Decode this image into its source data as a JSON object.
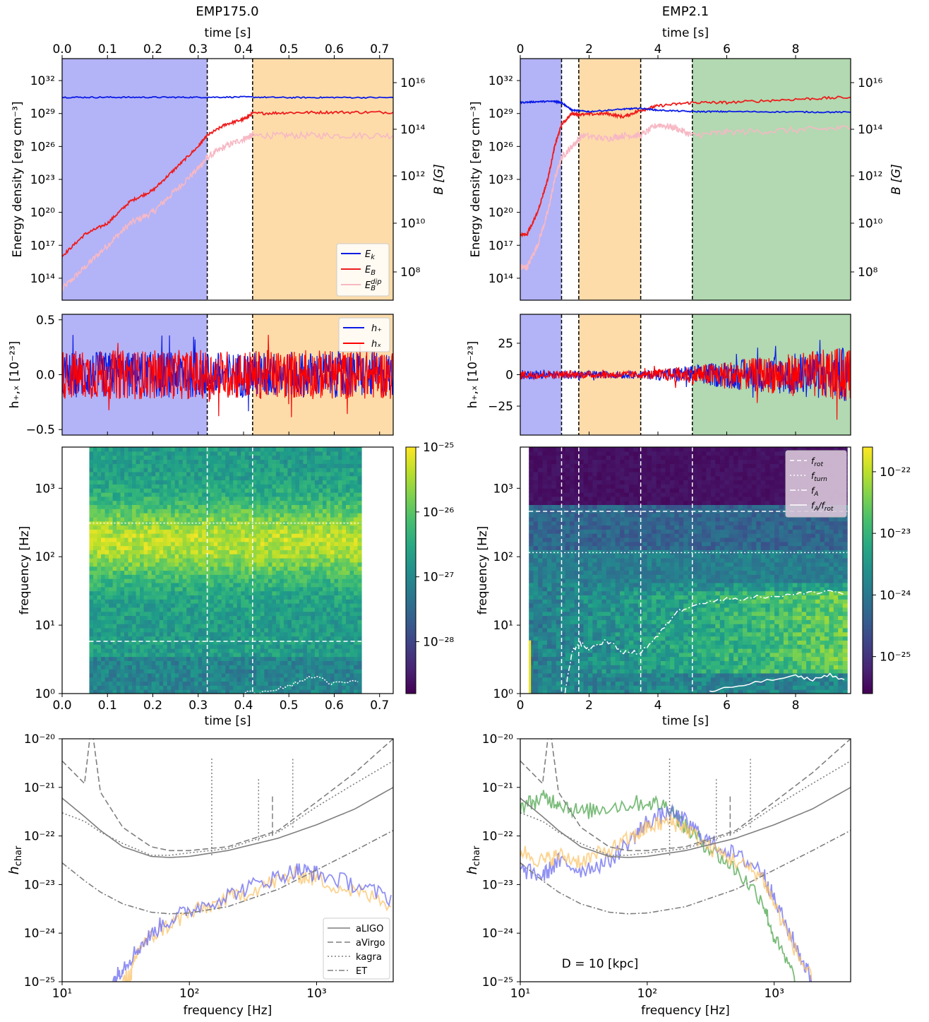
{
  "figure": {
    "columns": [
      {
        "title": "EMP175.0"
      },
      {
        "title": "EMP2.1"
      }
    ],
    "colors": {
      "blue_phase": "#b3b3f7",
      "orange_phase": "#fddcaa",
      "green_phase": "#b2d9b1",
      "Ek": "#0a1be6",
      "EB": "#ee1c1c",
      "EBdip": "#f7b8c4",
      "hplus": "#0a1be6",
      "hcross": "#ff0000",
      "detector": "#7f7f7f",
      "spec_blue": "#6b6bf2",
      "spec_orange": "#fbc469",
      "spec_green": "#4ea64e"
    }
  },
  "chart_data": [
    {
      "id": "EMP175.0-energy",
      "type": "line",
      "title": "EMP175.0",
      "xlabel_top": "time [s]",
      "xlim": [
        0,
        0.73
      ],
      "xticks": [
        "0.0",
        "0.1",
        "0.2",
        "0.3",
        "0.4",
        "0.5",
        "0.6",
        "0.7"
      ],
      "ylabel": "Energy density [erg cm⁻³]",
      "ylog": true,
      "ylim": [
        1000000000000.0,
        1e+34
      ],
      "yticks": [
        "10¹⁴",
        "10¹⁷",
        "10²⁰",
        "10²³",
        "10²⁶",
        "10²⁹",
        "10³²"
      ],
      "ylabel_right": "B [G]",
      "yticks_right": [
        "10⁸",
        "10¹⁰",
        "10¹²",
        "10¹⁴",
        "10¹⁶"
      ],
      "phases": [
        {
          "x0": 0.0,
          "x1": 0.32,
          "color": "blue"
        },
        {
          "x0": 0.42,
          "x1": 0.73,
          "color": "orange"
        }
      ],
      "vlines": [
        0.32,
        0.42
      ],
      "legend": [
        "E_k",
        "E_B",
        "E_B^dip"
      ],
      "series": [
        {
          "name": "E_k",
          "x": [
            0.0,
            0.1,
            0.2,
            0.3,
            0.4,
            0.5,
            0.6,
            0.73
          ],
          "y": [
            3e+30,
            3e+30,
            3e+30,
            3e+30,
            3.2e+30,
            2.8e+30,
            2.9e+30,
            2.8e+30
          ]
        },
        {
          "name": "E_B",
          "x": [
            0.0,
            0.05,
            0.1,
            0.15,
            0.2,
            0.25,
            0.3,
            0.32,
            0.36,
            0.4,
            0.42,
            0.5,
            0.6,
            0.73
          ],
          "y": [
            1e+16,
            1e+18,
            1e+19,
            1e+21,
            1e+22,
            1e+24,
            1e+26,
            1e+27,
            1e+28,
            3e+28,
            1e+29,
            1.2e+29,
            1.3e+29,
            1.3e+29
          ]
        },
        {
          "name": "E_B^dip",
          "x": [
            0.0,
            0.05,
            0.1,
            0.15,
            0.2,
            0.25,
            0.3,
            0.32,
            0.36,
            0.4,
            0.42,
            0.5,
            0.6,
            0.73
          ],
          "y": [
            10000000000000.0,
            1000000000000000.0,
            1e+17,
            1e+19,
            1e+20,
            1e+22,
            1e+24,
            1e+25,
            1e+26,
            5e+26,
            1e+27,
            1e+27,
            1e+27,
            1e+27
          ]
        }
      ]
    },
    {
      "id": "EMP2.1-energy",
      "type": "line",
      "title": "EMP2.1",
      "xlabel_top": "time [s]",
      "xlim": [
        0,
        9.6
      ],
      "xticks": [
        "0",
        "2",
        "4",
        "6",
        "8"
      ],
      "ylabel": "Energy density [erg cm⁻³]",
      "ylog": true,
      "ylim": [
        1000000000000.0,
        1e+34
      ],
      "yticks": [
        "10¹⁴",
        "10¹⁷",
        "10²⁰",
        "10²³",
        "10²⁶",
        "10²⁹",
        "10³²"
      ],
      "ylabel_right": "B [G]",
      "yticks_right": [
        "10⁸",
        "10¹⁰",
        "10¹²",
        "10¹⁴",
        "10¹⁶"
      ],
      "phases": [
        {
          "x0": 0.0,
          "x1": 1.2,
          "color": "blue"
        },
        {
          "x0": 1.7,
          "x1": 3.5,
          "color": "orange"
        },
        {
          "x0": 5.0,
          "x1": 9.6,
          "color": "green"
        }
      ],
      "vlines": [
        1.2,
        1.7,
        3.5,
        5.0
      ],
      "series": [
        {
          "name": "E_k",
          "x": [
            0.0,
            0.5,
            1.0,
            1.2,
            1.5,
            2.0,
            3.0,
            3.5,
            4.0,
            5.0,
            6.0,
            8.0,
            9.6
          ],
          "y": [
            1e+30,
            1.2e+30,
            1.3e+30,
            1e+30,
            2e+29,
            1.5e+29,
            2.5e+29,
            3e+29,
            2e+29,
            1.5e+29,
            1.5e+29,
            1.4e+29,
            1.3e+29
          ]
        },
        {
          "name": "E_B",
          "x": [
            0.0,
            0.2,
            0.5,
            0.8,
            1.0,
            1.2,
            1.5,
            1.8,
            2.5,
            3.0,
            3.5,
            4.0,
            5.0,
            6.0,
            8.0,
            9.6
          ],
          "y": [
            1e+18,
            1e+18,
            1e+20,
            1e+23,
            1e+26,
            1e+28,
            1e+29,
            8e+28,
            1e+29,
            5e+28,
            2e+29,
            5e+29,
            1e+30,
            1e+30,
            2e+30,
            3e+30
          ]
        },
        {
          "name": "E_B^dip",
          "x": [
            0.0,
            0.2,
            0.5,
            0.8,
            1.0,
            1.2,
            1.5,
            1.8,
            2.5,
            3.0,
            3.5,
            4.0,
            4.5,
            5.0,
            6.0,
            8.0,
            9.6
          ],
          "y": [
            1000000000000000.0,
            1000000000000000.0,
            1e+17,
            1e+20,
            1e+23,
            1e+25,
            1e+26,
            1e+27,
            5e+26,
            1e+27,
            1e+27,
            1e+28,
            5e+27,
            1e+27,
            2e+27,
            3e+27,
            5e+27
          ]
        }
      ]
    },
    {
      "id": "EMP175.0-strain",
      "type": "line",
      "xlim": [
        0,
        0.73
      ],
      "ylabel": "h₊,ₓ [10⁻²³]",
      "ylim": [
        -0.55,
        0.55
      ],
      "yticks": [
        "0.5",
        "0.0",
        "−0.5"
      ],
      "phases": [
        {
          "x0": 0.0,
          "x1": 0.32,
          "color": "blue"
        },
        {
          "x0": 0.42,
          "x1": 0.73,
          "color": "orange"
        }
      ],
      "vlines": [
        0.32,
        0.42
      ],
      "legend": [
        "h₊",
        "hₓ"
      ],
      "series": [
        {
          "name": "h₊",
          "amplitude": 0.28
        },
        {
          "name": "hₓ",
          "amplitude": 0.3
        }
      ]
    },
    {
      "id": "EMP2.1-strain",
      "type": "line",
      "xlim": [
        0,
        9.6
      ],
      "ylabel": "h₊,ₓ [10⁻²³]",
      "ylim": [
        -48,
        48
      ],
      "yticks": [
        "25",
        "0",
        "−25"
      ],
      "phases": [
        {
          "x0": 0.0,
          "x1": 1.2,
          "color": "blue"
        },
        {
          "x0": 1.7,
          "x1": 3.5,
          "color": "orange"
        },
        {
          "x0": 5.0,
          "x1": 9.6,
          "color": "green"
        }
      ],
      "vlines": [
        1.2,
        1.7,
        3.5,
        5.0
      ],
      "series": [
        {
          "name": "h₊",
          "amplitude_x": [
            0,
            1.2,
            3.5,
            5.0,
            9.6
          ],
          "amplitude": [
            5,
            4,
            4,
            10,
            30
          ]
        },
        {
          "name": "hₓ",
          "amplitude_x": [
            0,
            1.2,
            3.5,
            5.0,
            9.6
          ],
          "amplitude": [
            5,
            4,
            4,
            10,
            30
          ]
        }
      ]
    },
    {
      "id": "EMP175.0-spectrogram",
      "type": "heatmap",
      "xlabel": "time [s]",
      "ylabel": "frequency [Hz]",
      "xlim": [
        0,
        0.73
      ],
      "xticks": [
        "0.0",
        "0.1",
        "0.2",
        "0.3",
        "0.4",
        "0.5",
        "0.6",
        "0.7"
      ],
      "ylog": true,
      "ylim": [
        1,
        4000
      ],
      "yticks": [
        "10⁰",
        "10¹",
        "10²",
        "10³"
      ],
      "data_xrange": [
        0.06,
        0.66
      ],
      "colorbar_ticks": [
        "10⁻²⁵",
        "10⁻²⁶",
        "10⁻²⁷",
        "10⁻²⁸"
      ],
      "colorbar_log_range": [
        -28.8,
        -25
      ],
      "vlines": [
        0.32,
        0.42
      ],
      "hline_dashed_hz": 5.8,
      "hline_dotted_hz": 310,
      "fA_curve": {
        "x": [
          0.4,
          0.45,
          0.5,
          0.55,
          0.6,
          0.66
        ],
        "y": [
          1.0,
          1.1,
          1.3,
          1.8,
          1.4,
          1.5
        ]
      }
    },
    {
      "id": "EMP2.1-spectrogram",
      "type": "heatmap",
      "xlabel": "time [s]",
      "ylabel": "frequency [Hz]",
      "xlim": [
        0,
        9.6
      ],
      "xticks": [
        "0",
        "2",
        "4",
        "6",
        "8"
      ],
      "ylog": true,
      "ylim": [
        1,
        4000
      ],
      "yticks": [
        "10⁰",
        "10¹",
        "10²",
        "10³"
      ],
      "data_xrange": [
        0.25,
        9.5
      ],
      "colorbar_ticks": [
        "10⁻²²",
        "10⁻²³",
        "10⁻²⁴",
        "10⁻²⁵"
      ],
      "colorbar_log_range": [
        -25.6,
        -21.6
      ],
      "vlines": [
        1.2,
        1.7,
        3.5,
        5.0
      ],
      "legend": [
        "f_rot",
        "f_turn",
        "f_A",
        "f_A²/f_rot"
      ],
      "hline_dashed_hz": 460,
      "hline_dotted_hz": 115,
      "fA_curve": {
        "x": [
          1.3,
          1.5,
          1.7,
          2.0,
          2.5,
          3.0,
          3.5,
          4.0,
          4.5,
          5.0,
          6.0,
          7.0,
          8.0,
          9.0,
          9.5
        ],
        "y": [
          1.0,
          4.0,
          5.5,
          4.5,
          6.0,
          4.0,
          4.0,
          7.0,
          15,
          20,
          24,
          26,
          28,
          32,
          28
        ]
      },
      "fA2frot_curve": {
        "x": [
          5.5,
          6.0,
          7.0,
          8.0,
          8.5,
          9.0,
          9.5
        ],
        "y": [
          1.05,
          1.2,
          1.5,
          1.8,
          1.6,
          1.9,
          1.5
        ]
      }
    },
    {
      "id": "EMP175.0-hchar",
      "type": "line",
      "xlabel": "frequency [Hz]",
      "ylabel": "h_char",
      "xlog": true,
      "ylog": true,
      "xlim": [
        10,
        4000
      ],
      "ylim": [
        1e-25,
        1e-20
      ],
      "xticks": [
        "10¹",
        "10²",
        "10³"
      ],
      "yticks": [
        "10⁻²⁰",
        "10⁻²¹",
        "10⁻²²",
        "10⁻²³",
        "10⁻²⁴",
        "10⁻²⁵"
      ],
      "legend": [
        "aLIGO",
        "aVirgo",
        "kagra",
        "ET"
      ],
      "series": [
        {
          "name": "aLIGO",
          "x": [
            10,
            15,
            20,
            30,
            50,
            70,
            100,
            200,
            500,
            1000,
            2000,
            4000
          ],
          "y": [
            6e-22,
            2.5e-22,
            1.3e-22,
            6e-23,
            3.8e-23,
            3.6e-23,
            3.8e-23,
            5e-23,
            9e-23,
            1.7e-22,
            3.6e-22,
            1e-21
          ]
        },
        {
          "name": "aVirgo",
          "x": [
            10,
            15,
            17,
            20,
            30,
            50,
            70,
            100,
            200,
            500,
            1000,
            2000,
            4000
          ],
          "y": [
            3.5e-21,
            1.2e-21,
            2e-20,
            8e-22,
            1.5e-22,
            6e-23,
            5e-23,
            5e-23,
            6e-23,
            1.3e-22,
            5e-22,
            2e-21,
            1e-20
          ]
        },
        {
          "name": "kagra",
          "x": [
            10,
            15,
            20,
            30,
            50,
            70,
            100,
            200,
            500,
            1000,
            2000,
            4000
          ],
          "y": [
            3e-22,
            2e-22,
            1.2e-22,
            7e-23,
            4e-23,
            4e-23,
            4.5e-23,
            5.5e-23,
            1.2e-22,
            4e-22,
            1.2e-21,
            3.5e-21
          ]
        },
        {
          "name": "ET",
          "x": [
            10,
            15,
            20,
            30,
            50,
            70,
            100,
            200,
            500,
            1000,
            2000,
            4000
          ],
          "y": [
            2.8e-23,
            1.2e-23,
            7e-24,
            4e-24,
            2.7e-24,
            2.5e-24,
            2.6e-24,
            3.5e-24,
            8e-24,
            2e-23,
            5e-23,
            1.3e-22
          ]
        },
        {
          "name": "spec_blue",
          "x": [
            25,
            30,
            40,
            60,
            100,
            200,
            400,
            700,
            1000,
            2000,
            4000
          ],
          "y": [
            1e-25,
            2e-25,
            5e-25,
            1.5e-24,
            3e-24,
            6e-24,
            1.2e-23,
            2e-23,
            1.7e-23,
            1e-23,
            5e-24
          ]
        },
        {
          "name": "spec_orange",
          "x": [
            30,
            35,
            40,
            60,
            100,
            200,
            400,
            700,
            1000,
            2000,
            4000
          ],
          "y": [
            1e-25,
            1.5e-25,
            5e-25,
            1.2e-24,
            2.5e-24,
            5e-24,
            1e-23,
            1.6e-23,
            1.3e-23,
            7e-24,
            4e-24
          ]
        }
      ]
    },
    {
      "id": "EMP2.1-hchar",
      "type": "line",
      "xlabel": "frequency [Hz]",
      "ylabel": "h_char",
      "xlog": true,
      "ylog": true,
      "xlim": [
        10,
        4000
      ],
      "ylim": [
        1e-25,
        1e-20
      ],
      "xticks": [
        "10¹",
        "10²",
        "10³"
      ],
      "yticks": [
        "10⁻²⁰",
        "10⁻²¹",
        "10⁻²²",
        "10⁻²³",
        "10⁻²⁴",
        "10⁻²⁵"
      ],
      "annotation": "D = 10 [kpc]",
      "series": [
        {
          "name": "aLIGO",
          "x": [
            10,
            15,
            20,
            30,
            50,
            70,
            100,
            200,
            500,
            1000,
            2000,
            4000
          ],
          "y": [
            6e-22,
            2.5e-22,
            1.3e-22,
            6e-23,
            3.8e-23,
            3.6e-23,
            3.8e-23,
            5e-23,
            9e-23,
            1.7e-22,
            3.6e-22,
            1e-21
          ]
        },
        {
          "name": "aVirgo",
          "x": [
            10,
            15,
            17,
            20,
            30,
            50,
            70,
            100,
            200,
            500,
            1000,
            2000,
            4000
          ],
          "y": [
            3.5e-21,
            1.2e-21,
            2e-20,
            8e-22,
            1.5e-22,
            6e-23,
            5e-23,
            5e-23,
            6e-23,
            1.3e-22,
            5e-22,
            2e-21,
            1e-20
          ]
        },
        {
          "name": "kagra",
          "x": [
            10,
            15,
            20,
            30,
            50,
            70,
            100,
            200,
            500,
            1000,
            2000,
            4000
          ],
          "y": [
            3e-22,
            2e-22,
            1.2e-22,
            7e-23,
            4e-23,
            4e-23,
            4.5e-23,
            5.5e-23,
            1.2e-22,
            4e-22,
            1.2e-21,
            3.5e-21
          ]
        },
        {
          "name": "ET",
          "x": [
            10,
            15,
            20,
            30,
            50,
            70,
            100,
            200,
            500,
            1000,
            2000,
            4000
          ],
          "y": [
            2.8e-23,
            1.2e-23,
            7e-24,
            4e-24,
            2.7e-24,
            2.5e-24,
            2.6e-24,
            3.5e-24,
            8e-24,
            2e-23,
            5e-23,
            1.3e-22
          ]
        },
        {
          "name": "spec_green",
          "x": [
            10,
            15,
            20,
            30,
            50,
            100,
            150,
            200,
            300,
            500,
            800,
            1000,
            1500
          ],
          "y": [
            4e-22,
            6e-22,
            5e-22,
            3e-22,
            4e-22,
            5e-22,
            4e-22,
            1.5e-22,
            6e-23,
            2e-23,
            5e-24,
            8e-25,
            1e-25
          ]
        },
        {
          "name": "spec_blue",
          "x": [
            10,
            15,
            20,
            30,
            50,
            80,
            100,
            150,
            200,
            300,
            500,
            800,
            1000,
            1500,
            2000
          ],
          "y": [
            2e-23,
            1.5e-23,
            3e-23,
            2e-23,
            3e-23,
            1e-22,
            2e-22,
            3e-22,
            2e-22,
            8e-23,
            4e-23,
            2e-23,
            5e-24,
            5e-25,
            1e-25
          ]
        },
        {
          "name": "spec_orange",
          "x": [
            10,
            15,
            20,
            30,
            50,
            80,
            100,
            150,
            200,
            300,
            500,
            800,
            1000,
            1500,
            2000
          ],
          "y": [
            5e-23,
            3e-23,
            4e-23,
            3e-23,
            5e-23,
            1e-22,
            1.5e-22,
            2e-22,
            1.5e-22,
            6e-23,
            3e-23,
            1.5e-23,
            4e-24,
            4e-25,
            1e-25
          ]
        }
      ]
    }
  ]
}
